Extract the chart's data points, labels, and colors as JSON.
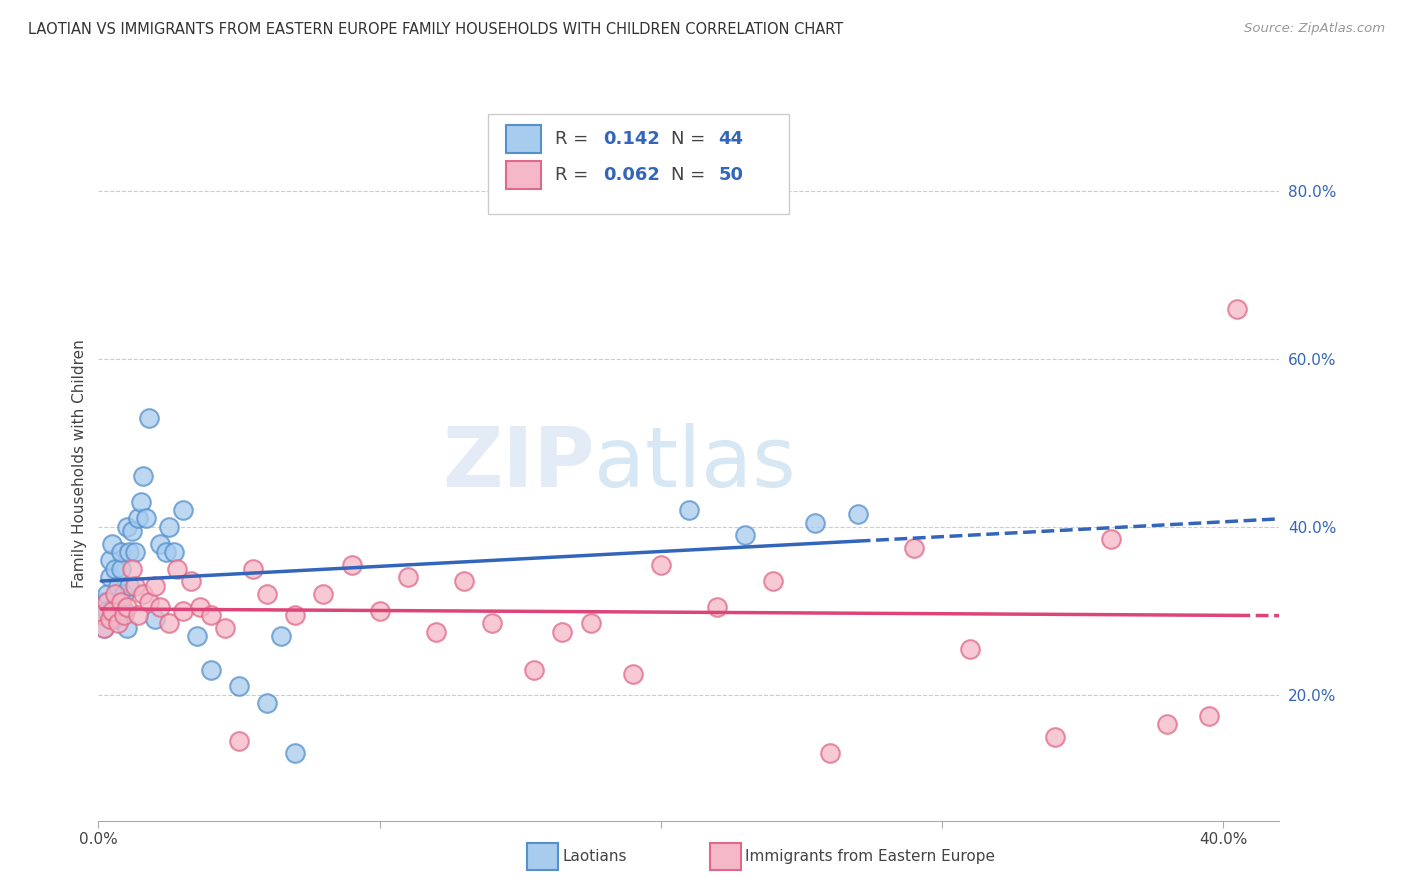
{
  "title": "LAOTIAN VS IMMIGRANTS FROM EASTERN EUROPE FAMILY HOUSEHOLDS WITH CHILDREN CORRELATION CHART",
  "source": "Source: ZipAtlas.com",
  "ylabel": "Family Households with Children",
  "xlim": [
    0.0,
    0.42
  ],
  "ylim": [
    0.05,
    0.9
  ],
  "yticks_right": [
    0.2,
    0.4,
    0.6,
    0.8
  ],
  "ytick_labels_right": [
    "20.0%",
    "40.0%",
    "60.0%",
    "80.0%"
  ],
  "color_laotian_fill": "#A8CCEE",
  "color_laotian_edge": "#5590CC",
  "color_eastern_fill": "#F5B8C8",
  "color_eastern_edge": "#E06888",
  "color_line_laotian": "#3366BB",
  "color_line_eastern": "#DD4477",
  "watermark_zip": "ZIP",
  "watermark_atlas": "atlas",
  "bottom_label1": "Laotians",
  "bottom_label2": "Immigrants from Eastern Europe",
  "laotian_x": [
    0.001,
    0.002,
    0.002,
    0.003,
    0.003,
    0.004,
    0.004,
    0.005,
    0.005,
    0.006,
    0.006,
    0.007,
    0.007,
    0.008,
    0.008,
    0.009,
    0.009,
    0.01,
    0.01,
    0.011,
    0.011,
    0.012,
    0.013,
    0.014,
    0.015,
    0.016,
    0.017,
    0.018,
    0.02,
    0.022,
    0.024,
    0.025,
    0.027,
    0.03,
    0.035,
    0.04,
    0.05,
    0.06,
    0.065,
    0.07,
    0.21,
    0.23,
    0.255,
    0.27
  ],
  "laotian_y": [
    0.295,
    0.31,
    0.28,
    0.32,
    0.3,
    0.34,
    0.36,
    0.38,
    0.295,
    0.35,
    0.29,
    0.31,
    0.33,
    0.35,
    0.37,
    0.3,
    0.32,
    0.4,
    0.28,
    0.37,
    0.33,
    0.395,
    0.37,
    0.41,
    0.43,
    0.46,
    0.41,
    0.53,
    0.29,
    0.38,
    0.37,
    0.4,
    0.37,
    0.42,
    0.27,
    0.23,
    0.21,
    0.19,
    0.27,
    0.13,
    0.42,
    0.39,
    0.405,
    0.415
  ],
  "eastern_x": [
    0.001,
    0.002,
    0.003,
    0.004,
    0.005,
    0.006,
    0.007,
    0.008,
    0.009,
    0.01,
    0.012,
    0.013,
    0.014,
    0.016,
    0.018,
    0.02,
    0.022,
    0.025,
    0.028,
    0.03,
    0.033,
    0.036,
    0.04,
    0.045,
    0.05,
    0.055,
    0.06,
    0.07,
    0.08,
    0.09,
    0.1,
    0.11,
    0.12,
    0.13,
    0.14,
    0.155,
    0.165,
    0.175,
    0.19,
    0.2,
    0.22,
    0.24,
    0.26,
    0.29,
    0.31,
    0.34,
    0.36,
    0.38,
    0.395,
    0.405
  ],
  "eastern_y": [
    0.295,
    0.28,
    0.31,
    0.29,
    0.3,
    0.32,
    0.285,
    0.31,
    0.295,
    0.305,
    0.35,
    0.33,
    0.295,
    0.32,
    0.31,
    0.33,
    0.305,
    0.285,
    0.35,
    0.3,
    0.335,
    0.305,
    0.295,
    0.28,
    0.145,
    0.35,
    0.32,
    0.295,
    0.32,
    0.355,
    0.3,
    0.34,
    0.275,
    0.335,
    0.285,
    0.23,
    0.275,
    0.285,
    0.225,
    0.355,
    0.305,
    0.335,
    0.13,
    0.375,
    0.255,
    0.15,
    0.385,
    0.165,
    0.175,
    0.66
  ]
}
